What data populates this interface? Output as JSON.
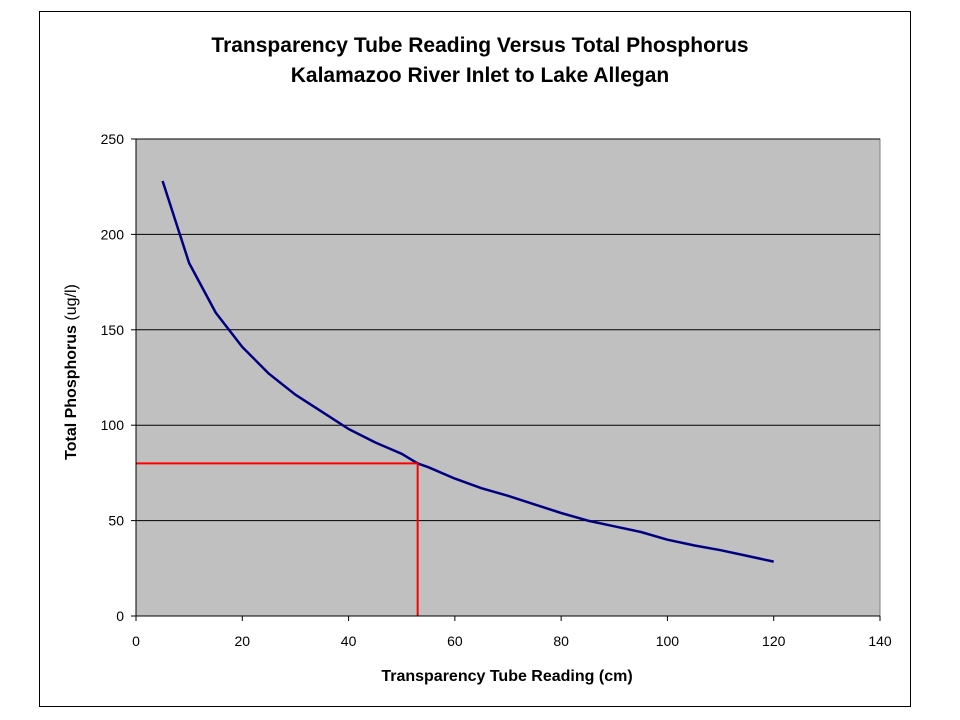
{
  "chart_data": {
    "type": "line",
    "title": "Transparency Tube Reading Versus Total Phosphorus",
    "subtitle": "Kalamazoo River Inlet to Lake Allegan",
    "xlabel": "Transparency Tube Reading (cm)",
    "ylabel_main": "Total Phosphorus ",
    "ylabel_unit": "(ug/l)",
    "xlim": [
      0,
      140
    ],
    "ylim": [
      0,
      250
    ],
    "xticks": [
      0,
      20,
      40,
      60,
      80,
      100,
      120,
      140
    ],
    "yticks": [
      0,
      50,
      100,
      150,
      200,
      250
    ],
    "grid": "horizontal",
    "plot_background": "#c0c0c0",
    "series": [
      {
        "color": "#000080",
        "x": [
          5,
          10,
          15,
          20,
          25,
          30,
          35,
          40,
          45,
          50,
          53,
          55,
          60,
          65,
          70,
          75,
          80,
          85,
          90,
          95,
          100,
          105,
          110,
          115,
          120
        ],
        "y": [
          228,
          185,
          159,
          141,
          127,
          116,
          107,
          98,
          91,
          85,
          80,
          78,
          72,
          67,
          63,
          58.5,
          54,
          50,
          47,
          44,
          40,
          37,
          34.5,
          31.5,
          28.5
        ]
      }
    ],
    "reference": {
      "color": "#ff0000",
      "x": 53,
      "y": 80
    }
  }
}
